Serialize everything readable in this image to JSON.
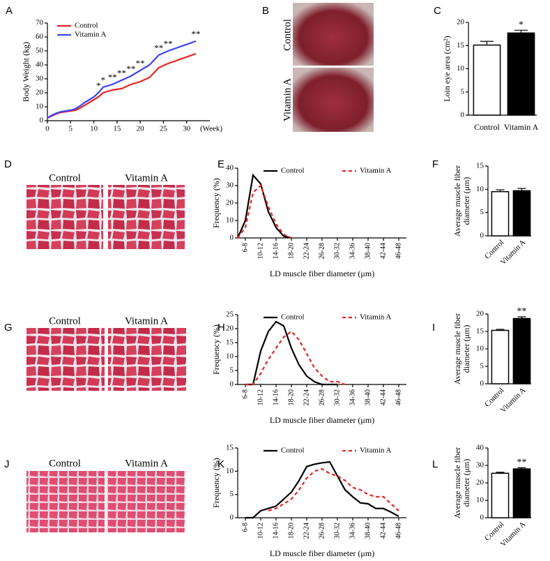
{
  "chart_data": [
    {
      "panel": "A",
      "type": "line",
      "ylabel": "Body Weight (kg)",
      "xlabel": "(Week)",
      "x": [
        0,
        1,
        2,
        3,
        4,
        5,
        6,
        7,
        8,
        9,
        10,
        11,
        12,
        14,
        16,
        18,
        20,
        22,
        24,
        26,
        32
      ],
      "series": [
        {
          "name": "Control",
          "color": "#e8231f",
          "values": [
            2,
            3.5,
            5,
            6,
            6.5,
            7,
            7.5,
            9,
            11,
            13,
            15,
            17,
            20,
            22,
            23,
            26,
            28,
            31,
            38,
            41,
            48
          ]
        },
        {
          "name": "Vitamin A",
          "color": "#3b43f0",
          "values": [
            2,
            4,
            5.5,
            6.5,
            7,
            7.5,
            8.5,
            10.5,
            13,
            15,
            17,
            20,
            24,
            26,
            29,
            32,
            36,
            40,
            47,
            50,
            57
          ]
        }
      ],
      "xlim": [
        0,
        35
      ],
      "xticks": [
        0,
        5,
        10,
        15,
        20,
        25,
        30
      ],
      "ylim": [
        0,
        70
      ],
      "yticks": [
        0,
        10,
        20,
        30,
        40,
        50,
        60,
        70
      ],
      "legend": "upper left",
      "annotations": [
        {
          "x": 11,
          "text": "*"
        },
        {
          "x": 12,
          "text": "*"
        },
        {
          "x": 14,
          "text": "**"
        },
        {
          "x": 16,
          "text": "**"
        },
        {
          "x": 18,
          "text": "**"
        },
        {
          "x": 20,
          "text": "**"
        },
        {
          "x": 24,
          "text": "**"
        },
        {
          "x": 26,
          "text": "**"
        },
        {
          "x": 32,
          "text": "**"
        }
      ]
    },
    {
      "panel": "C",
      "type": "bar",
      "ylabel": "Loin eye area (cm²)",
      "categories": [
        "Control",
        "Vitamin A"
      ],
      "values": [
        15.1,
        17.7
      ],
      "errors": [
        0.8,
        0.6
      ],
      "colors": [
        "#ffffff",
        "#000000"
      ],
      "ylim": [
        0,
        20
      ],
      "yticks": [
        0,
        5,
        10,
        15,
        20
      ],
      "annotations": [
        {
          "x": "Vitamin A",
          "text": "*"
        }
      ]
    },
    {
      "panel": "E",
      "type": "line",
      "ylabel": "Frequency (%)",
      "xlabel": "LD muscle fiber diameter (μm)",
      "categories": [
        null,
        "6-8",
        null,
        "10-12",
        null,
        "14-16",
        null,
        "18-20",
        null,
        "22-24",
        null,
        "26-28",
        null,
        "30-32",
        null,
        "34-36",
        null,
        "38-40",
        null,
        "42-44",
        null,
        "46-48"
      ],
      "series": [
        {
          "name": "Control",
          "color": "#000000",
          "dash": false,
          "values": [
            0,
            10,
            36,
            31,
            15,
            6,
            1,
            0,
            null,
            null,
            null,
            null,
            null,
            null,
            null,
            null,
            null,
            null,
            null,
            null,
            null,
            null
          ]
        },
        {
          "name": "Vitamin A",
          "color": "#e8231f",
          "dash": true,
          "values": [
            0,
            6,
            26,
            30,
            18,
            8,
            2,
            0,
            null,
            null,
            null,
            null,
            null,
            null,
            null,
            null,
            null,
            null,
            null,
            null,
            null,
            null
          ]
        }
      ],
      "ylim": [
        0,
        40
      ],
      "yticks": [
        0,
        10,
        20,
        30,
        40
      ],
      "legend": "upper center"
    },
    {
      "panel": "F",
      "type": "bar",
      "ylabel": [
        "Average muscle fiber",
        "diameter (μm)"
      ],
      "categories": [
        "Control",
        "Vitamin A"
      ],
      "values": [
        9.5,
        9.7
      ],
      "errors": [
        0.4,
        0.5
      ],
      "colors": [
        "#ffffff",
        "#000000"
      ],
      "ylim": [
        0,
        15
      ],
      "yticks": [
        0,
        5,
        10,
        15
      ]
    },
    {
      "panel": "H",
      "type": "line",
      "ylabel": "Frequency (%)",
      "xlabel": "LD muscle fiber diameter (μm)",
      "categories": [
        null,
        "6-8",
        null,
        "10-12",
        null,
        "14-16",
        null,
        "18-20",
        null,
        "22-24",
        null,
        "26-28",
        null,
        "30-32",
        null,
        "34-36",
        null,
        "38-40",
        null,
        "42-44",
        null,
        "46-48"
      ],
      "series": [
        {
          "name": "Control",
          "color": "#000000",
          "dash": false,
          "values": [
            null,
            0,
            0,
            12,
            19,
            22.5,
            21,
            13,
            7,
            3,
            1,
            0,
            0,
            0,
            null,
            null,
            null,
            null,
            null,
            null,
            null,
            null
          ]
        },
        {
          "name": "Vitamin A",
          "color": "#e8231f",
          "dash": true,
          "values": [
            null,
            0,
            0,
            4,
            9,
            13,
            17,
            19,
            16,
            11,
            6,
            3,
            1,
            1,
            0,
            null,
            null,
            null,
            null,
            null,
            null,
            null
          ]
        }
      ],
      "ylim": [
        0,
        25
      ],
      "yticks": [
        0,
        5,
        10,
        15,
        20,
        25
      ],
      "legend": "upper center"
    },
    {
      "panel": "I",
      "type": "bar",
      "ylabel": [
        "Average muscle fiber",
        "diameter (μm)"
      ],
      "categories": [
        "Control",
        "Vitamin A"
      ],
      "values": [
        15.3,
        18.7
      ],
      "errors": [
        0.3,
        0.5
      ],
      "colors": [
        "#ffffff",
        "#000000"
      ],
      "ylim": [
        0,
        20
      ],
      "yticks": [
        0,
        5,
        10,
        15,
        20
      ],
      "annotations": [
        {
          "x": "Vitamin A",
          "text": "**"
        }
      ]
    },
    {
      "panel": "K",
      "type": "line",
      "ylabel": "Frequency (%)",
      "xlabel": "LD muscle fiber diameter (μm)",
      "categories": [
        null,
        "6-8",
        null,
        "10-12",
        null,
        "14-16",
        null,
        "18-20",
        null,
        "22-24",
        null,
        "26-28",
        null,
        "30-32",
        null,
        "34-36",
        null,
        "38-40",
        null,
        "42-44",
        null,
        "46-48"
      ],
      "series": [
        {
          "name": "Control",
          "color": "#000000",
          "dash": false,
          "values": [
            null,
            0,
            0,
            1.5,
            2,
            2.5,
            4,
            5.5,
            8,
            11,
            11.5,
            11.8,
            12,
            9,
            6,
            4.5,
            3.2,
            3,
            2,
            2,
            1.2,
            0.3
          ]
        },
        {
          "name": "Vitamin A",
          "color": "#e8231f",
          "dash": true,
          "values": [
            null,
            null,
            null,
            null,
            1.5,
            2,
            3,
            4,
            6,
            8.5,
            10,
            10.5,
            9.5,
            9,
            8,
            6.5,
            6,
            5,
            4.5,
            4.5,
            3,
            1.5
          ]
        }
      ],
      "ylim": [
        0,
        15
      ],
      "yticks": [
        0,
        5,
        10,
        15
      ],
      "legend": "upper center"
    },
    {
      "panel": "L",
      "type": "bar",
      "ylabel": [
        "Average muscle fiber",
        "diameter (μm)"
      ],
      "categories": [
        "Control",
        "Vitamin A"
      ],
      "values": [
        25.5,
        28
      ],
      "errors": [
        0.6,
        0.7
      ],
      "colors": [
        "#ffffff",
        "#000000"
      ],
      "ylim": [
        0,
        40
      ],
      "yticks": [
        0,
        10,
        20,
        30,
        40
      ],
      "annotations": [
        {
          "x": "Vitamin A",
          "text": "**"
        }
      ]
    }
  ],
  "photos": [
    {
      "panel": "B",
      "labels": [
        "Control",
        "Vitamin A"
      ]
    },
    {
      "panel": "D",
      "labels": [
        "Control",
        "Vitamin A"
      ]
    },
    {
      "panel": "G",
      "labels": [
        "Control",
        "Vitamin A"
      ]
    },
    {
      "panel": "J",
      "labels": [
        "Control",
        "Vitamin A"
      ]
    }
  ]
}
